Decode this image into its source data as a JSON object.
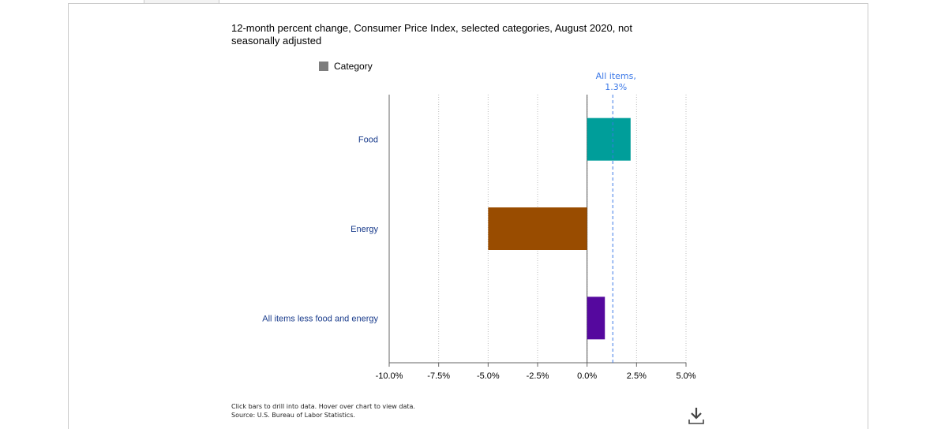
{
  "chart_data": {
    "type": "bar",
    "orientation": "horizontal",
    "title": "12-month percent change, Consumer Price Index, selected categories, August 2020, not seasonally adjusted",
    "legend": [
      {
        "label": "Category",
        "color": "#7d7d7d"
      }
    ],
    "categories": [
      "Food",
      "Energy",
      "All items less food and energy"
    ],
    "values": [
      2.2,
      -5.0,
      0.9
    ],
    "colors": [
      "#009e9a",
      "#994c00",
      "#55089e"
    ],
    "xlim": [
      -10,
      5
    ],
    "xticks": [
      -10,
      -7.5,
      -5,
      -2.5,
      0,
      2.5,
      5
    ],
    "xtick_labels": [
      "-10.0%",
      "-7.5%",
      "-5.0%",
      "-2.5%",
      "0.0%",
      "2.5%",
      "5.0%"
    ],
    "grid": true,
    "reference_line": {
      "value": 1.3,
      "label_line1": "All items,",
      "label_line2": "1.3%",
      "color": "#3b78e7"
    }
  },
  "footer": {
    "line1": "Click bars to drill into data. Hover over chart to view data.",
    "line2": "Source: U.S. Bureau of Labor Statistics."
  },
  "icons": {
    "download": "download-icon"
  }
}
